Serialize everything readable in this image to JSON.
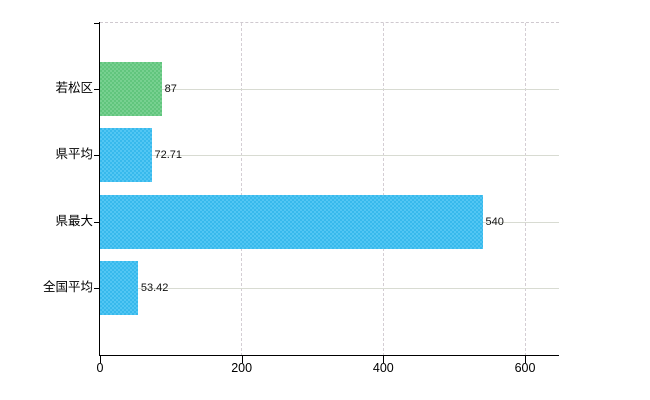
{
  "chart_data": {
    "type": "bar",
    "orientation": "horizontal",
    "title": "",
    "xlabel": "",
    "ylabel": "",
    "categories": [
      "若松区",
      "県平均",
      "県最大",
      "全国平均"
    ],
    "values": [
      87,
      72.71,
      540,
      53.42
    ],
    "value_labels": [
      "87",
      "72.71",
      "540",
      "53.42"
    ],
    "bar_colors": [
      "#63c97f",
      "#38bdf1",
      "#38bdf1",
      "#38bdf1"
    ],
    "xlim": [
      0,
      648
    ],
    "xticks": [
      0,
      200,
      400,
      600
    ],
    "xtick_labels": [
      "0",
      "200",
      "400",
      "600"
    ],
    "grid": {
      "horizontal_style": "solid",
      "vertical_style": "dashed",
      "horizontal_color": "#d8dbd2",
      "vertical_color": "#d4ced4"
    },
    "axis_color": "#000000",
    "tick_label_color": "#000000",
    "value_label_color": "#111111",
    "background_color": "#ffffff",
    "legend_position": "none"
  }
}
